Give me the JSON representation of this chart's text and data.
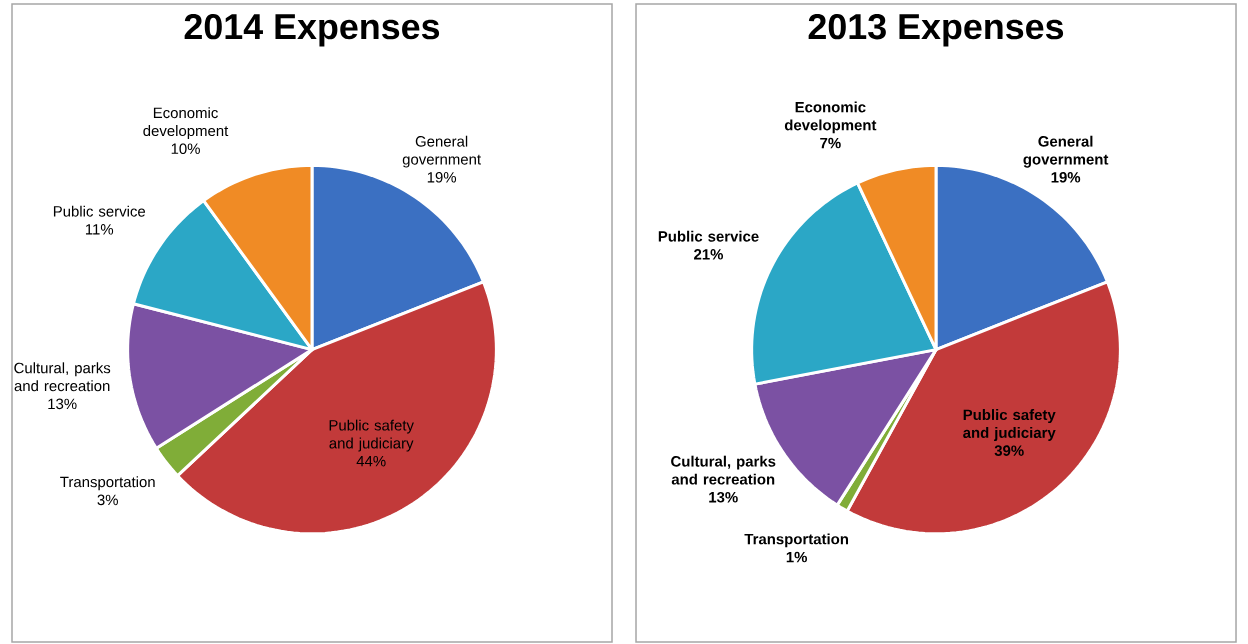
{
  "chart_data": [
    {
      "type": "pie",
      "title": "2014 Expenses",
      "categories": [
        "General government",
        "Public safety and judiciary",
        "Transportation",
        "Cultural, parks and recreation",
        "Public service",
        "Economic development"
      ],
      "values": [
        19,
        44,
        3,
        13,
        11,
        10
      ],
      "value_labels": [
        "19%",
        "44%",
        "3%",
        "13%",
        "11%",
        "10%"
      ],
      "colors": [
        "#3b70c2",
        "#c23a3a",
        "#80ad38",
        "#7b51a3",
        "#2ba7c6",
        "#f08b25"
      ]
    },
    {
      "type": "pie",
      "title": "2013 Expenses",
      "categories": [
        "General government",
        "Public safety and judiciary",
        "Transportation",
        "Cultural, parks and recreation",
        "Public service",
        "Economic development"
      ],
      "values": [
        19,
        39,
        1,
        13,
        21,
        7
      ],
      "value_labels": [
        "19%",
        "39%",
        "1%",
        "13%",
        "21%",
        "7%"
      ],
      "colors": [
        "#3b70c2",
        "#c23a3a",
        "#80ad38",
        "#7b51a3",
        "#2ba7c6",
        "#f08b25"
      ]
    }
  ]
}
